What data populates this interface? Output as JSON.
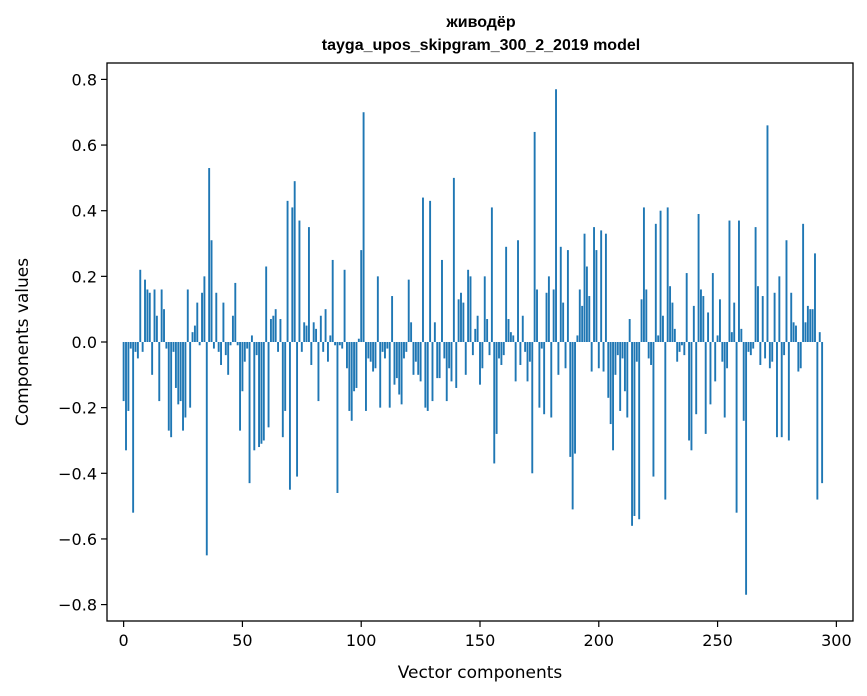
{
  "chart_data": {
    "type": "bar",
    "title": "живодёр",
    "subtitle": "tayga_upos_skipgram_300_2_2019 model",
    "xlabel": "Vector components",
    "ylabel": "Components values",
    "xlim": [
      -7,
      307
    ],
    "ylim": [
      -0.85,
      0.85
    ],
    "xticks": [
      0,
      50,
      100,
      150,
      200,
      250,
      300
    ],
    "xtick_labels": [
      "0",
      "50",
      "100",
      "150",
      "200",
      "250",
      "300"
    ],
    "yticks": [
      0.8,
      0.6,
      0.4,
      0.2,
      0.0,
      -0.2,
      -0.4,
      -0.6,
      -0.8
    ],
    "ytick_labels": [
      "0.8",
      "0.6",
      "0.4",
      "0.2",
      "0.0",
      "−0.2",
      "−0.4",
      "−0.6",
      "−0.8"
    ],
    "bar_color": "#1f77b4",
    "series": [
      {
        "name": "живодёр",
        "values": [
          -0.18,
          -0.33,
          -0.21,
          -0.02,
          -0.52,
          -0.03,
          -0.05,
          0.22,
          -0.03,
          0.19,
          0.16,
          0.15,
          -0.1,
          0.16,
          0.08,
          -0.18,
          0.16,
          0.1,
          -0.02,
          -0.27,
          -0.29,
          -0.03,
          -0.14,
          -0.19,
          -0.18,
          -0.27,
          -0.23,
          0.16,
          -0.2,
          0.03,
          0.05,
          0.12,
          -0.01,
          0.15,
          0.2,
          -0.65,
          0.53,
          0.31,
          -0.02,
          0.15,
          -0.03,
          -0.07,
          0.12,
          -0.04,
          -0.1,
          -0.01,
          0.08,
          0.18,
          -0.01,
          -0.27,
          -0.15,
          -0.06,
          -0.02,
          -0.43,
          0.02,
          -0.33,
          -0.04,
          -0.32,
          -0.31,
          -0.3,
          0.23,
          -0.26,
          0.07,
          0.08,
          0.1,
          -0.03,
          0.07,
          -0.29,
          -0.21,
          0.43,
          -0.45,
          0.41,
          0.49,
          -0.41,
          0.37,
          -0.03,
          0.06,
          0.05,
          0.35,
          -0.07,
          0.06,
          0.04,
          -0.18,
          0.08,
          -0.03,
          0.1,
          -0.06,
          0.02,
          0.25,
          -0.01,
          -0.46,
          -0.01,
          -0.02,
          0.22,
          -0.08,
          -0.21,
          -0.24,
          -0.15,
          -0.14,
          0.01,
          0.28,
          0.7,
          -0.21,
          -0.05,
          -0.06,
          -0.09,
          -0.08,
          0.2,
          -0.2,
          -0.03,
          -0.05,
          -0.02,
          -0.2,
          0.14,
          -0.13,
          -0.11,
          -0.16,
          -0.19,
          -0.05,
          -0.03,
          0.19,
          0.06,
          -0.1,
          -0.06,
          -0.1,
          -0.12,
          0.44,
          -0.2,
          -0.21,
          0.43,
          -0.18,
          0.06,
          -0.11,
          -0.11,
          0.25,
          -0.05,
          -0.18,
          -0.08,
          -0.12,
          0.5,
          -0.14,
          0.13,
          0.15,
          0.12,
          -0.1,
          0.22,
          0.2,
          -0.04,
          0.04,
          0.08,
          -0.13,
          -0.08,
          0.2,
          0.07,
          -0.04,
          0.41,
          -0.37,
          -0.28,
          -0.05,
          -0.07,
          -0.04,
          0.29,
          0.07,
          0.03,
          0.02,
          -0.12,
          0.31,
          -0.07,
          0.08,
          -0.03,
          -0.12,
          -0.06,
          -0.4,
          0.64,
          0.16,
          -0.2,
          -0.02,
          -0.22,
          0.15,
          0.2,
          -0.23,
          0.16,
          0.77,
          -0.1,
          0.29,
          0.12,
          -0.08,
          0.28,
          -0.35,
          -0.51,
          -0.34,
          0.02,
          0.16,
          0.11,
          0.33,
          0.23,
          0.14,
          -0.09,
          0.35,
          0.28,
          -0.08,
          0.34,
          -0.09,
          0.33,
          -0.17,
          -0.25,
          -0.33,
          -0.1,
          -0.04,
          -0.21,
          -0.05,
          -0.15,
          -0.23,
          0.07,
          -0.56,
          -0.53,
          -0.06,
          -0.54,
          0.13,
          0.41,
          0.16,
          -0.05,
          -0.07,
          -0.41,
          0.36,
          0.02,
          0.4,
          0.08,
          -0.48,
          0.41,
          0.17,
          0.12,
          0.04,
          -0.06,
          -0.03,
          -0.01,
          -0.04,
          0.21,
          -0.3,
          -0.33,
          0.11,
          -0.22,
          0.39,
          0.16,
          0.14,
          -0.28,
          0.09,
          -0.19,
          0.21,
          -0.12,
          0.02,
          0.13,
          -0.06,
          -0.23,
          -0.08,
          0.37,
          0.03,
          0.12,
          -0.52,
          0.37,
          0.04,
          -0.24,
          -0.77,
          -0.03,
          -0.04,
          -0.02,
          0.35,
          0.17,
          -0.07,
          0.14,
          -0.05,
          0.66,
          -0.08,
          -0.06,
          0.15,
          -0.29,
          0.2,
          -0.29,
          -0.04,
          0.31,
          -0.3,
          0.15,
          0.06,
          0.05,
          -0.09,
          -0.08,
          0.36,
          0.06,
          0.11,
          0.1,
          0.1,
          0.27,
          -0.48,
          0.03,
          -0.43
        ]
      }
    ]
  }
}
